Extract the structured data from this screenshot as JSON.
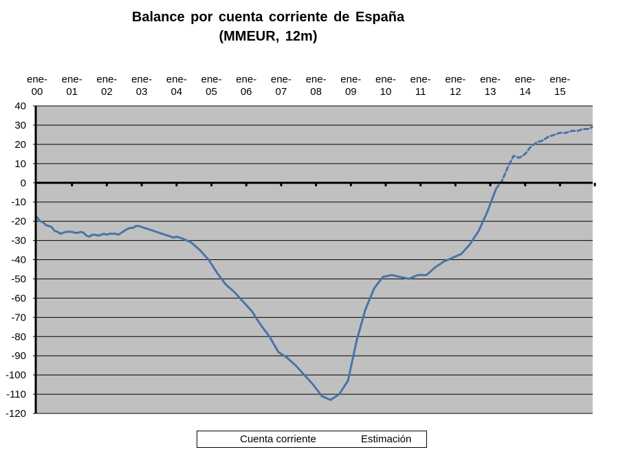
{
  "chart_data": {
    "type": "line",
    "title": "Balance por cuenta corriente de España",
    "subtitle": "(MMEUR, 12m)",
    "x_ticks": [
      "ene-\n00",
      "ene-\n01",
      "ene-\n02",
      "ene-\n03",
      "ene-\n04",
      "ene-\n05",
      "ene-\n06",
      "ene-\n07",
      "ene-\n08",
      "ene-\n09",
      "ene-\n10",
      "ene-\n11",
      "ene-\n12",
      "ene-\n13",
      "ene-\n14",
      "ene-\n15"
    ],
    "x_axis_position": "top",
    "ylim": [
      -120,
      40
    ],
    "y_ticks": [
      40,
      30,
      20,
      10,
      0,
      -10,
      -20,
      -30,
      -40,
      -50,
      -60,
      -70,
      -80,
      -90,
      -100,
      -110,
      -120
    ],
    "grid": true,
    "plot_background": "#c0c0c0",
    "legend_placement": "bottom",
    "series": [
      {
        "name": "Cuenta corriente",
        "style": "solid",
        "color": "#4a73a8",
        "x": [
          "2000-01",
          "2000-02",
          "2000-03",
          "2000-04",
          "2000-05",
          "2000-06",
          "2000-07",
          "2000-08",
          "2000-09",
          "2000-10",
          "2000-11",
          "2000-12",
          "2001-01",
          "2001-02",
          "2001-03",
          "2001-04",
          "2001-05",
          "2001-06",
          "2001-07",
          "2001-08",
          "2001-09",
          "2001-10",
          "2001-11",
          "2001-12",
          "2002-01",
          "2002-02",
          "2002-03",
          "2002-04",
          "2002-05",
          "2002-06",
          "2002-07",
          "2002-08",
          "2002-09",
          "2002-10",
          "2002-11",
          "2002-12",
          "2003-01",
          "2003-02",
          "2003-03",
          "2003-04",
          "2003-05",
          "2003-06",
          "2003-07",
          "2003-08",
          "2003-09",
          "2003-10",
          "2003-11",
          "2003-12",
          "2004-01",
          "2004-03",
          "2004-06",
          "2004-09",
          "2004-12",
          "2005-03",
          "2005-06",
          "2005-09",
          "2005-12",
          "2006-03",
          "2006-06",
          "2006-09",
          "2006-12",
          "2007-03",
          "2007-06",
          "2007-09",
          "2007-12",
          "2008-03",
          "2008-06",
          "2008-09",
          "2008-12",
          "2009-03",
          "2009-06",
          "2009-09",
          "2009-12",
          "2010-03",
          "2010-06",
          "2010-09",
          "2010-12",
          "2011-03",
          "2011-06",
          "2011-09",
          "2011-12",
          "2012-03",
          "2012-06",
          "2012-09",
          "2012-12",
          "2013-03"
        ],
        "y": [
          -18,
          -20,
          -20.5,
          -22,
          -22.5,
          -23,
          -25,
          -25.5,
          -26.5,
          -26,
          -25.5,
          -25.5,
          -25.5,
          -26,
          -26,
          -25.5,
          -26,
          -27.5,
          -28,
          -27,
          -27,
          -27.5,
          -27,
          -26.5,
          -27,
          -26.5,
          -26.5,
          -26.5,
          -27,
          -26,
          -25,
          -24,
          -23.5,
          -23.5,
          -22.5,
          -22.5,
          -23,
          -23.5,
          -24,
          -24.5,
          -25,
          -25.5,
          -26,
          -26.5,
          -27,
          -27.5,
          -28,
          -28.5,
          -28,
          -29,
          -31,
          -35,
          -40,
          -47,
          -53,
          -57,
          -62,
          -67,
          -74,
          -80,
          -88,
          -91,
          -95,
          -100,
          -105,
          -111,
          -113,
          -110,
          -103,
          -82,
          -66,
          -55,
          -49,
          -48,
          -49,
          -50,
          -48,
          -48,
          -44,
          -41,
          -39,
          -37,
          -32,
          -25,
          -15,
          -3
        ]
      },
      {
        "name": "Estimación",
        "style": "dashed",
        "color": "#4a73a8",
        "x": [
          "2013-03",
          "2013-05",
          "2013-07",
          "2013-09",
          "2013-11",
          "2014-01",
          "2014-03",
          "2014-05",
          "2014-07",
          "2014-09",
          "2014-11",
          "2015-01",
          "2015-03",
          "2015-05",
          "2015-07",
          "2015-09",
          "2015-11",
          "2015-12"
        ],
        "y": [
          -3,
          1,
          8,
          14,
          13,
          15,
          19,
          21,
          22,
          24,
          25,
          26,
          26,
          27,
          27,
          28,
          28,
          29
        ]
      }
    ]
  }
}
